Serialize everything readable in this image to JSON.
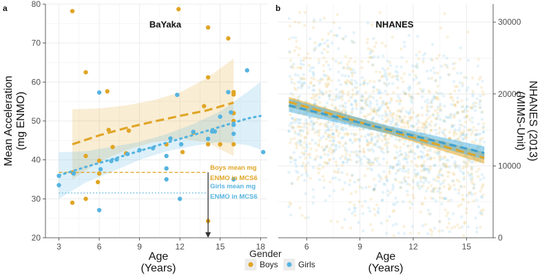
{
  "chart_data": [
    {
      "type": "scatter",
      "panel_label": "a",
      "title": "BaYaka",
      "xlabel": "Age",
      "xlabel_units": "(Years)",
      "ylabel": "Mean Acceleration",
      "ylabel_units": "(mg ENMO)",
      "xlim": [
        2,
        18.5
      ],
      "ylim": [
        20,
        80
      ],
      "xticks": [
        3,
        6,
        9,
        12,
        15,
        18
      ],
      "yticks": [
        20,
        30,
        40,
        50,
        60,
        70,
        80
      ],
      "grid": true,
      "series": [
        {
          "name": "Boys",
          "color": "#E0A526",
          "points": [
            [
              4,
              78.2
            ],
            [
              4,
              36.8
            ],
            [
              4,
              29
            ],
            [
              5,
              62.5
            ],
            [
              5,
              41
            ],
            [
              5,
              30
            ],
            [
              6,
              39.8
            ],
            [
              5.9,
              34.3
            ],
            [
              6,
              36.5
            ],
            [
              6.6,
              57.6
            ],
            [
              6.7,
              47.7
            ],
            [
              7,
              43.3
            ],
            [
              8.2,
              47.5
            ],
            [
              8,
              41.7
            ],
            [
              11,
              44
            ],
            [
              11.9,
              78.7
            ],
            [
              12.2,
              42
            ],
            [
              13,
              47
            ],
            [
              14.1,
              74
            ],
            [
              14.1,
              61.2
            ],
            [
              14.1,
              44
            ],
            [
              14.1,
              24.3
            ],
            [
              15,
              44
            ],
            [
              15.6,
              71.2
            ],
            [
              16,
              57.4
            ],
            [
              16,
              56.8
            ],
            [
              16,
              52
            ],
            [
              16,
              50
            ],
            [
              16,
              44
            ],
            [
              13.8,
              53.8
            ]
          ],
          "fit": [
            [
              4,
              44
            ],
            [
              6,
              46.3
            ],
            [
              8,
              48.2
            ],
            [
              10,
              49.8
            ],
            [
              12,
              51.3
            ],
            [
              14,
              52.7
            ],
            [
              16,
              54.7
            ]
          ],
          "ci_lower": [
            [
              4,
              35
            ],
            [
              6,
              39.5
            ],
            [
              8,
              42.5
            ],
            [
              10,
              44.5
            ],
            [
              12,
              45.5
            ],
            [
              14,
              44.5
            ],
            [
              16,
              41
            ]
          ],
          "ci_upper": [
            [
              4,
              53
            ],
            [
              6,
              53.2
            ],
            [
              8,
              54
            ],
            [
              10,
              55.3
            ],
            [
              12,
              57.3
            ],
            [
              14,
              61
            ],
            [
              16,
              66
            ]
          ],
          "mean_mcs6": 36.8,
          "mean_label": "Boys mean mg ENMO in MCS6"
        },
        {
          "name": "Girls",
          "color": "#56B4E0",
          "points": [
            [
              3,
              33.5
            ],
            [
              3,
              35.9
            ],
            [
              4.1,
              36.5
            ],
            [
              6,
              57.3
            ],
            [
              6,
              27.1
            ],
            [
              6.1,
              37.6
            ],
            [
              6.9,
              39.7
            ],
            [
              7.3,
              40.1
            ],
            [
              8.1,
              41.5
            ],
            [
              9,
              42.5
            ],
            [
              10,
              43
            ],
            [
              11,
              41
            ],
            [
              11,
              37.8
            ],
            [
              11,
              35
            ],
            [
              11.3,
              45.5
            ],
            [
              11.8,
              56.7
            ],
            [
              12,
              30
            ],
            [
              12.1,
              44
            ],
            [
              13,
              47.2
            ],
            [
              14.1,
              45.4
            ],
            [
              14.4,
              47.3
            ],
            [
              14.6,
              47.3
            ],
            [
              15,
              51.1
            ],
            [
              15.6,
              57.4
            ],
            [
              15.8,
              52.2
            ],
            [
              16,
              49
            ],
            [
              16,
              46.7
            ],
            [
              16,
              35
            ],
            [
              17,
              63
            ],
            [
              18.2,
              42
            ]
          ],
          "fit": [
            [
              3,
              36
            ],
            [
              5,
              38.2
            ],
            [
              7,
              40.2
            ],
            [
              9,
              42.3
            ],
            [
              11,
              44.4
            ],
            [
              13,
              46.4
            ],
            [
              15,
              48.5
            ],
            [
              17,
              50.6
            ],
            [
              18,
              51.3
            ]
          ],
          "ci_lower": [
            [
              3,
              30
            ],
            [
              5,
              34.2
            ],
            [
              7,
              37
            ],
            [
              9,
              40
            ],
            [
              11,
              42.2
            ],
            [
              13,
              43.6
            ],
            [
              15,
              44.6
            ],
            [
              17,
              43.8
            ],
            [
              18,
              42.7
            ]
          ],
          "ci_upper": [
            [
              3,
              42
            ],
            [
              5,
              42.2
            ],
            [
              7,
              43.4
            ],
            [
              9,
              44.6
            ],
            [
              11,
              46.6
            ],
            [
              13,
              49.2
            ],
            [
              15,
              52.4
            ],
            [
              17,
              57.4
            ],
            [
              18,
              60
            ]
          ],
          "mean_mcs6": 31.5,
          "mean_label": "Girls mean mg ENMO in MCS6"
        }
      ],
      "annotations": [
        {
          "text_line1": "Boys mean mg",
          "text_line2": "ENMO in MCS6",
          "series": "Boys"
        },
        {
          "text_line1": "Girls mean mg",
          "text_line2": "ENMO in MCS6",
          "series": "Girls"
        }
      ],
      "arrow": {
        "from": [
          14.1,
          36.8
        ],
        "to": [
          14.1,
          20
        ]
      }
    },
    {
      "type": "scatter",
      "panel_label": "b",
      "title": "NHANES",
      "xlabel": "Age",
      "xlabel_units": "(Years)",
      "ylabel": "NHANES (2013)",
      "ylabel_units": "(MIMS-Unit)",
      "xlim": [
        4.4,
        16.5
      ],
      "ylim": [
        0,
        32500
      ],
      "xticks": [
        6,
        9,
        12,
        15
      ],
      "yticks": [
        0,
        10000,
        20000,
        30000
      ],
      "yaxis_side": "right",
      "grid": true,
      "scatter_cloud": {
        "n_per_series": 900,
        "opacity": 0.16,
        "seed": 7
      },
      "series": [
        {
          "name": "Boys",
          "color": "#E0A526",
          "fit": [
            [
              5,
              18900
            ],
            [
              16,
              11100
            ]
          ],
          "ci_halfwidth": [
            700,
            500,
            800
          ]
        },
        {
          "name": "Girls",
          "color": "#56B4E0",
          "fit": [
            [
              5,
              18400
            ],
            [
              16,
              11800
            ]
          ],
          "ci_halfwidth": [
            900,
            550,
            900
          ]
        }
      ]
    }
  ],
  "legend": {
    "title": "Gender",
    "items": [
      {
        "label": "Boys",
        "color": "#E0A526"
      },
      {
        "label": "Girls",
        "color": "#56B4E0"
      }
    ]
  }
}
